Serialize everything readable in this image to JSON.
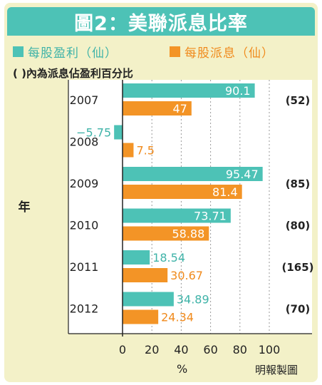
{
  "title": "圖2：美聯派息比率",
  "note": "(  )內為派息佔盈利百分比",
  "source": "明報製圖",
  "colors": {
    "eps": "#4dc2b6",
    "dps": "#f39426",
    "frame": "#f3f1c8",
    "title_bar": "#4dc2b6"
  },
  "chart_data": {
    "type": "bar",
    "orientation": "horizontal",
    "categories": [
      "2007",
      "2008",
      "2009",
      "2010",
      "2011",
      "2012"
    ],
    "series": [
      {
        "name": "每股盈利（仙）",
        "values": [
          90.1,
          -5.75,
          95.47,
          73.71,
          18.54,
          34.89
        ],
        "labels": [
          "90.1",
          "−5.75",
          "95.47",
          "73.71",
          "18.54",
          "34.89"
        ]
      },
      {
        "name": "每股派息（仙）",
        "values": [
          47,
          7.5,
          81.4,
          58.88,
          30.67,
          24.34
        ],
        "labels": [
          "47",
          "7.5",
          "81.4",
          "58.88",
          "30.67",
          "24.34"
        ]
      }
    ],
    "payout_ratio_labels": [
      "(52)",
      "",
      "(85)",
      "(80)",
      "(165)",
      "(70)"
    ],
    "xticks": [
      "0",
      "20",
      "40",
      "60",
      "80",
      "100"
    ],
    "xlim": [
      -10,
      120
    ],
    "xlabel": "%",
    "ylabel": "年",
    "grid": "vertical dashed"
  }
}
